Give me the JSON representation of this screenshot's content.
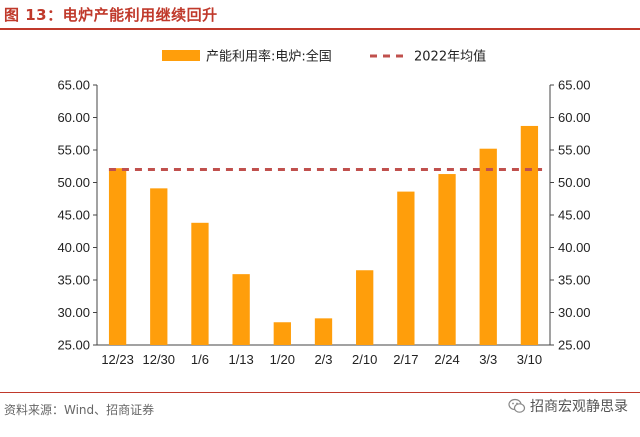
{
  "header": {
    "title": "图 13：电炉产能利用继续回升"
  },
  "footer": {
    "source": "资料来源：Wind、招商证券",
    "watermark": "招商宏观静思录",
    "watermark_icon": "wechat-icon"
  },
  "colors": {
    "bar": "#FF9E0B",
    "avg_line": "#C0504D",
    "accent": "#C0392B"
  },
  "chart_data": {
    "type": "bar",
    "categories": [
      "12/23",
      "12/30",
      "1/6",
      "1/13",
      "1/20",
      "2/3",
      "2/10",
      "2/17",
      "2/24",
      "3/3",
      "3/10"
    ],
    "series": [
      {
        "name": "产能利用率:电炉:全国",
        "type": "bar",
        "values": [
          52.2,
          49.1,
          43.8,
          35.9,
          28.5,
          29.1,
          36.5,
          48.6,
          51.3,
          55.2,
          58.7
        ]
      },
      {
        "name": "2022年均值",
        "type": "line",
        "style": "dashed",
        "value": 52.0
      }
    ],
    "ylim": [
      25,
      65
    ],
    "yticks": [
      "65.00",
      "60.00",
      "55.00",
      "50.00",
      "45.00",
      "40.00",
      "35.00",
      "30.00",
      "25.00"
    ],
    "y2ticks": [
      "65.00",
      "60.00",
      "55.00",
      "50.00",
      "45.00",
      "40.00",
      "35.00",
      "30.00",
      "25.00"
    ],
    "legend_position": "top-center",
    "grid": false
  }
}
